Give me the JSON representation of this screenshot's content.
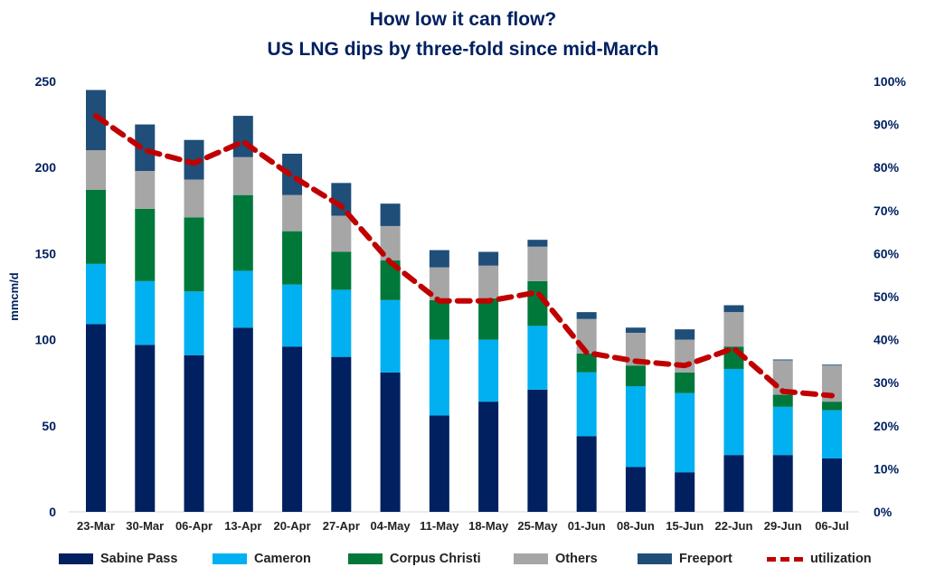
{
  "chart_data": {
    "type": "bar",
    "stacked": true,
    "title": "How low it can flow?",
    "subtitle": "US LNG dips by three-fold since mid-March",
    "ylabel": "mmcm/d",
    "ylim": [
      0,
      250
    ],
    "yticks": [
      "0",
      "50",
      "100",
      "150",
      "200",
      "250"
    ],
    "y2lim": [
      0,
      100
    ],
    "y2ticks": [
      "0%",
      "10%",
      "20%",
      "30%",
      "40%",
      "50%",
      "60%",
      "70%",
      "80%",
      "90%",
      "100%"
    ],
    "grid": false,
    "legend_position": "bottom",
    "categories": [
      "23-Mar",
      "30-Mar",
      "06-Apr",
      "13-Apr",
      "20-Apr",
      "27-Apr",
      "04-May",
      "11-May",
      "18-May",
      "25-May",
      "01-Jun",
      "08-Jun",
      "15-Jun",
      "22-Jun",
      "29-Jun",
      "06-Jul"
    ],
    "series": [
      {
        "name": "Sabine Pass",
        "color": "#002060",
        "values": [
          109,
          97,
          91,
          107,
          96,
          90,
          81,
          56,
          64,
          71,
          44,
          26,
          23,
          33,
          33,
          31
        ]
      },
      {
        "name": "Cameron",
        "color": "#00b0f0",
        "values": [
          35,
          37,
          37,
          33,
          36,
          39,
          42,
          44,
          36,
          37,
          37,
          47,
          46,
          50,
          28,
          28
        ]
      },
      {
        "name": "Corpus Christi",
        "color": "#00783a",
        "values": [
          43,
          42,
          43,
          44,
          31,
          22,
          23,
          23,
          24,
          26,
          11,
          12,
          12,
          13,
          7,
          5
        ]
      },
      {
        "name": "Others",
        "color": "#a6a6a6",
        "values": [
          23,
          22,
          22,
          22,
          21,
          21,
          20,
          19,
          19,
          20,
          20,
          19,
          19,
          20,
          20,
          21
        ]
      },
      {
        "name": "Freeport",
        "color": "#1f4e79",
        "values": [
          35,
          27,
          23,
          24,
          24,
          19,
          13,
          10,
          8,
          4,
          4,
          3,
          6,
          4,
          0.5,
          0.5
        ]
      }
    ],
    "line_series": {
      "name": "utilization",
      "color": "#c00000",
      "axis": "right",
      "style": "dashed",
      "values": [
        92,
        84,
        81,
        86,
        78,
        71,
        58,
        49,
        49,
        51,
        37,
        35,
        34,
        38,
        28,
        27
      ]
    }
  }
}
